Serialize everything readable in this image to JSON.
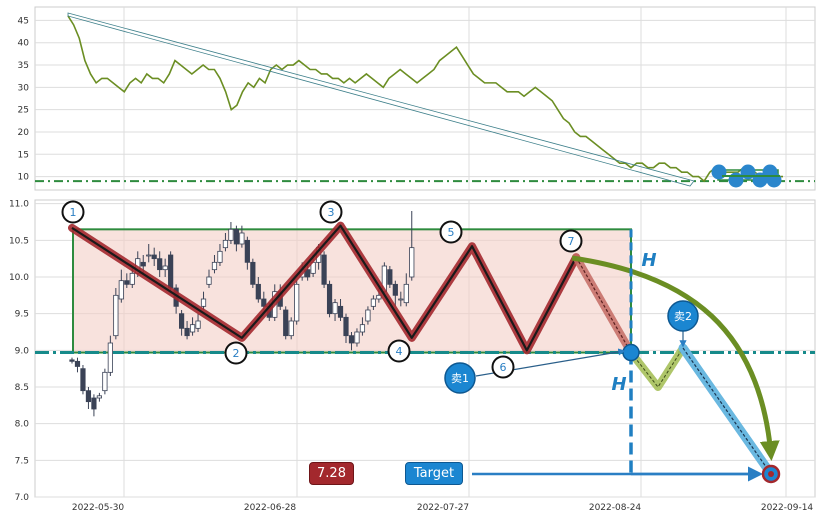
{
  "chart_data": [
    {
      "type": "line",
      "panel": "top",
      "ylim": [
        7,
        48
      ],
      "yticks": [
        10,
        15,
        20,
        25,
        30,
        35,
        40,
        45
      ],
      "line_color": "#6b8e23",
      "support_level": 9,
      "series": [
        {
          "values": [
            46,
            44,
            41,
            36,
            33,
            31,
            32,
            32,
            31,
            30,
            29,
            31,
            32,
            31,
            33,
            32,
            32,
            31,
            33,
            36,
            35,
            34,
            33,
            34,
            35,
            34,
            34,
            32,
            29,
            25,
            26,
            29,
            31,
            30,
            32,
            31,
            34,
            35,
            34,
            35,
            35,
            36,
            35,
            34,
            34,
            33,
            33,
            32,
            32,
            31,
            32,
            31,
            32,
            33,
            32,
            31,
            30,
            32,
            33,
            34,
            33,
            32,
            31,
            32,
            33,
            34,
            36,
            37,
            38,
            39,
            37,
            35,
            33,
            32,
            31,
            31,
            31,
            30,
            29,
            29,
            29,
            28,
            29,
            30,
            29,
            28,
            27,
            25,
            23,
            22,
            20,
            19,
            19,
            18,
            17,
            16,
            15,
            14,
            13,
            13,
            12,
            13,
            13,
            12,
            12,
            13,
            13,
            12,
            12,
            11,
            11,
            10,
            10,
            9,
            11,
            12,
            11,
            11,
            11,
            11,
            12,
            11,
            11,
            10,
            10,
            10,
            10,
            10
          ]
        }
      ]
    },
    {
      "type": "candlestick",
      "panel": "bottom",
      "ylim": [
        7.0,
        11.05
      ],
      "yticks": [
        "11.0",
        "10.5",
        "10.0",
        "9.5",
        "9.0",
        "8.5",
        "8.0",
        "7.5",
        "7.0"
      ],
      "xtick_labels": [
        "2022-05-30",
        "2022-06-28",
        "2022-07-27",
        "2022-08-24",
        "2022-09-14"
      ],
      "candles": [
        [
          8.87,
          8.85,
          8.9,
          8.82
        ],
        [
          8.85,
          8.78,
          8.9,
          8.7
        ],
        [
          8.75,
          8.45,
          8.8,
          8.4
        ],
        [
          8.45,
          8.3,
          8.5,
          8.2
        ],
        [
          8.35,
          8.2,
          8.4,
          8.1
        ],
        [
          8.35,
          8.38,
          8.42,
          8.3
        ],
        [
          8.45,
          8.7,
          8.75,
          8.4
        ],
        [
          8.7,
          9.1,
          9.2,
          8.65
        ],
        [
          9.2,
          9.75,
          9.85,
          9.15
        ],
        [
          9.7,
          9.95,
          10.1,
          9.65
        ],
        [
          9.95,
          9.9,
          10.05,
          9.85
        ],
        [
          9.9,
          10.05,
          10.15,
          9.85
        ],
        [
          10.05,
          10.25,
          10.35,
          10.0
        ],
        [
          10.2,
          10.15,
          10.3,
          10.05
        ],
        [
          10.3,
          10.3,
          10.45,
          10.2
        ],
        [
          10.3,
          10.25,
          10.4,
          10.15
        ],
        [
          10.25,
          10.1,
          10.35,
          10.0
        ],
        [
          10.1,
          10.15,
          10.25,
          10.0
        ],
        [
          10.3,
          9.85,
          10.35,
          9.8
        ],
        [
          9.85,
          9.6,
          9.9,
          9.5
        ],
        [
          9.5,
          9.3,
          9.55,
          9.2
        ],
        [
          9.3,
          9.2,
          9.4,
          9.15
        ],
        [
          9.25,
          9.35,
          9.45,
          9.2
        ],
        [
          9.3,
          9.4,
          9.5,
          9.25
        ],
        [
          9.6,
          9.7,
          9.8,
          9.55
        ],
        [
          9.9,
          10.0,
          10.1,
          9.85
        ],
        [
          10.1,
          10.2,
          10.3,
          10.05
        ],
        [
          10.2,
          10.35,
          10.45,
          10.15
        ],
        [
          10.4,
          10.5,
          10.6,
          10.35
        ],
        [
          10.5,
          10.65,
          10.75,
          10.45
        ],
        [
          10.65,
          10.45,
          10.7,
          10.35
        ],
        [
          10.45,
          10.6,
          10.7,
          10.4
        ],
        [
          10.5,
          10.2,
          10.55,
          10.1
        ],
        [
          10.2,
          9.9,
          10.25,
          9.85
        ],
        [
          9.9,
          9.7,
          10.0,
          9.65
        ],
        [
          9.7,
          9.6,
          9.8,
          9.55
        ],
        [
          9.6,
          9.45,
          9.65,
          9.4
        ],
        [
          9.45,
          9.8,
          9.9,
          9.4
        ],
        [
          9.8,
          9.6,
          9.9,
          9.55
        ],
        [
          9.55,
          9.2,
          9.6,
          9.15
        ],
        [
          9.2,
          9.4,
          9.45,
          9.15
        ],
        [
          9.4,
          9.9,
          9.95,
          9.35
        ],
        [
          10.0,
          10.1,
          10.2,
          9.95
        ],
        [
          10.1,
          10.0,
          10.2,
          9.95
        ],
        [
          10.05,
          10.2,
          10.3,
          10.0
        ],
        [
          10.2,
          10.4,
          10.45,
          10.1
        ],
        [
          10.3,
          9.9,
          10.35,
          9.85
        ],
        [
          9.9,
          9.5,
          9.95,
          9.45
        ],
        [
          9.5,
          9.65,
          9.7,
          9.4
        ],
        [
          9.6,
          9.45,
          9.7,
          9.4
        ],
        [
          9.45,
          9.2,
          9.5,
          9.1
        ],
        [
          9.2,
          9.1,
          9.25,
          9.0
        ],
        [
          9.1,
          9.25,
          9.3,
          9.05
        ],
        [
          9.25,
          9.35,
          9.45,
          9.2
        ],
        [
          9.4,
          9.55,
          9.6,
          9.35
        ],
        [
          9.6,
          9.7,
          9.75,
          9.55
        ],
        [
          9.7,
          9.75,
          9.85,
          9.65
        ],
        [
          9.8,
          10.15,
          10.2,
          9.75
        ],
        [
          10.1,
          9.9,
          10.15,
          9.85
        ],
        [
          9.9,
          9.75,
          9.95,
          9.6
        ],
        [
          9.7,
          9.7,
          9.8,
          9.6
        ],
        [
          9.65,
          9.9,
          10.05,
          9.6
        ],
        [
          10.0,
          10.4,
          10.9,
          9.95
        ]
      ],
      "resistance": 10.65,
      "support": 8.97,
      "target": 7.28,
      "pivot_labels": [
        "1",
        "2",
        "3",
        "4",
        "5",
        "6",
        "7"
      ],
      "pivots": [
        [
          0,
          10.67
        ],
        [
          31,
          9.17
        ],
        [
          49,
          10.7
        ],
        [
          62,
          9.17
        ],
        [
          73,
          10.42
        ],
        [
          83,
          9.0
        ],
        [
          92,
          10.27
        ]
      ],
      "annotations": {
        "height_label": "H",
        "price_badge": "7.28",
        "target_badge": "Target",
        "sell1_label": "卖1",
        "sell2_label": "卖2"
      }
    }
  ]
}
